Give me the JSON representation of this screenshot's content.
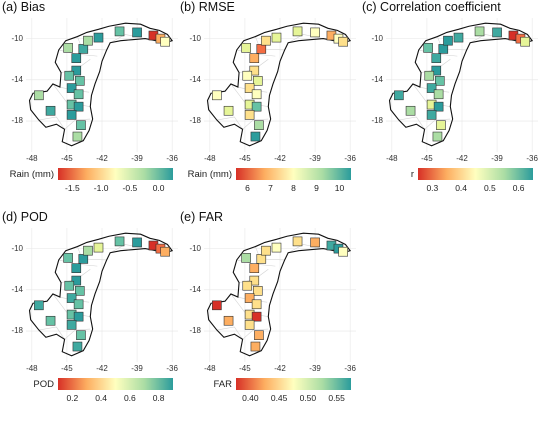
{
  "panels": [
    {
      "title": "(a) Bias",
      "legend_title": "Rain (mm)",
      "legend_ticks": [
        "-1.5",
        "-1.0",
        "-0.5",
        "0.0"
      ],
      "palette": [
        "#d73027",
        "#fdae61",
        "#ffffbf",
        "#abdda4",
        "#2b9c9c"
      ],
      "station_colors": [
        "#abdda4",
        "#3fa9a0",
        "#2b9c9c",
        "#abdda4",
        "#2b9c9c",
        "#d73027",
        "#fdae61",
        "#ffffbf",
        "#66c2a5",
        "#2b9c9c",
        "#2b9c9c",
        "#66c2a5",
        "#66c2a5",
        "#2b9c9c",
        "#66c2a5",
        "#66c2a5",
        "#2b9c9c",
        "#abdda4",
        "#3fa9a0",
        "#2b9c9c",
        "#66c2a5",
        "#abdda4"
      ]
    },
    {
      "title": "(b) RMSE",
      "legend_title": "Rain (mm)",
      "legend_ticks": [
        "6",
        "7",
        "8",
        "9",
        "10"
      ],
      "palette": [
        "#d73027",
        "#fdae61",
        "#ffffbf",
        "#abdda4",
        "#2b9c9c"
      ],
      "station_colors": [
        "#e6f598",
        "#f46d43",
        "#fdae61",
        "#fee08b",
        "#e6f598",
        "#fdae61",
        "#ffffbf",
        "#fee08b",
        "#e6f598",
        "#ffffbf",
        "#fee08b",
        "#ffffbf",
        "#e6f598",
        "#fee08b",
        "#ffffbf",
        "#e6f598",
        "#66c2a5",
        "#ffffbf",
        "#e6f598",
        "#fee08b",
        "#abdda4",
        "#2b9c9c"
      ]
    },
    {
      "title": "(c) Correlation coefficient",
      "legend_title": "r",
      "legend_ticks": [
        "0.3",
        "0.4",
        "0.5",
        "0.6"
      ],
      "palette": [
        "#d73027",
        "#fdae61",
        "#ffffbf",
        "#abdda4",
        "#2b9c9c"
      ],
      "station_colors": [
        "#66c2a5",
        "#2b9c9c",
        "#3fa9a0",
        "#2b9c9c",
        "#3fa9a0",
        "#d73027",
        "#f46d43",
        "#e6f598",
        "#abdda4",
        "#3fa9a0",
        "#2b9c9c",
        "#abdda4",
        "#66c2a5",
        "#3fa9a0",
        "#abdda4",
        "#e6f598",
        "#2b9c9c",
        "#3fa9a0",
        "#abdda4",
        "#3fa9a0",
        "#e6f598",
        "#abdda4"
      ]
    },
    {
      "title": "(d) POD",
      "legend_title": "POD",
      "legend_ticks": [
        "0.2",
        "0.4",
        "0.6",
        "0.8"
      ],
      "palette": [
        "#d73027",
        "#fdae61",
        "#ffffbf",
        "#abdda4",
        "#2b9c9c"
      ],
      "station_colors": [
        "#66c2a5",
        "#2b9c9c",
        "#2b9c9c",
        "#abdda4",
        "#e6f598",
        "#d73027",
        "#f46d43",
        "#fdae61",
        "#66c2a5",
        "#2b9c9c",
        "#2b9c9c",
        "#66c2a5",
        "#66c2a5",
        "#3fa9a0",
        "#66c2a5",
        "#66c2a5",
        "#2b9c9c",
        "#3fa9a0",
        "#66c2a5",
        "#3fa9a0",
        "#66c2a5",
        "#3fa9a0"
      ]
    },
    {
      "title": "(e) FAR",
      "legend_title": "FAR",
      "legend_ticks": [
        "0.40",
        "0.45",
        "0.50",
        "0.55"
      ],
      "palette": [
        "#d73027",
        "#fdae61",
        "#ffffbf",
        "#abdda4",
        "#2b9c9c"
      ],
      "station_colors": [
        "#abdda4",
        "#fee08b",
        "#fdae61",
        "#fee08b",
        "#ffffbf",
        "#3fa9a0",
        "#2b9c9c",
        "#ffffbf",
        "#fee08b",
        "#fdae61",
        "#fee08b",
        "#fee08b",
        "#fee08b",
        "#fdae61",
        "#fee08b",
        "#fee08b",
        "#d73027",
        "#d73027",
        "#fdae61",
        "#fee08b",
        "#fdae61",
        "#fdae61"
      ]
    }
  ],
  "axes": {
    "y_ticks": [
      "-10",
      "-14",
      "-18"
    ],
    "x_ticks": [
      "-48",
      "-45",
      "-42",
      "-39",
      "-36"
    ]
  },
  "map_data": {
    "lon_range": [
      -48.5,
      -35.5
    ],
    "lat_range": [
      -21,
      -8
    ]
  }
}
